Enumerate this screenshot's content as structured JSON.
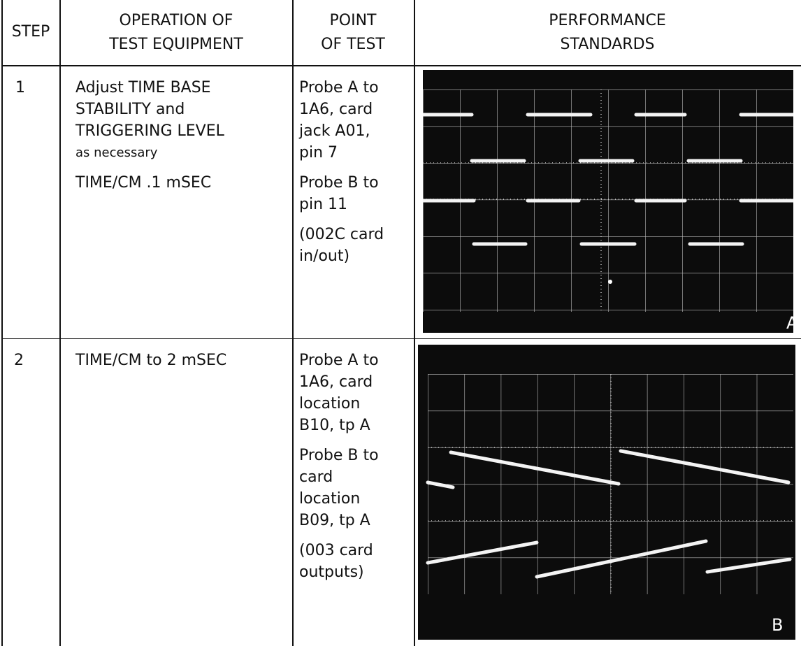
{
  "table": {
    "headers": [
      [
        "STEP"
      ],
      [
        "OPERATION OF",
        "TEST EQUIPMENT"
      ],
      [
        "POINT",
        "OF TEST"
      ],
      [
        "PERFORMANCE",
        "STANDARDS"
      ]
    ],
    "rows": [
      {
        "step": "1",
        "operation": [
          [
            "Adjust TIME BASE",
            "STABILITY and",
            "TRIGGERING LEVEL",
            "as necessary"
          ],
          [
            "TIME/CM .1 mSEC"
          ]
        ],
        "point": [
          [
            "Probe A to",
            "1A6, card",
            "jack A01,",
            "pin 7"
          ],
          [
            "Probe B to",
            "pin 11"
          ],
          [
            "(002C card",
            "in/out)"
          ]
        ],
        "figure_label": "A"
      },
      {
        "step": "2",
        "operation": [
          [
            "TIME/CM to 2 mSEC"
          ]
        ],
        "point": [
          [
            "Probe A to",
            "1A6, card",
            "location",
            "B10, tp A"
          ],
          [
            "Probe B to",
            "card",
            "location",
            "B09, tp A"
          ],
          [
            "(003 card",
            "outputs)"
          ]
        ],
        "figure_label": "B"
      }
    ]
  }
}
